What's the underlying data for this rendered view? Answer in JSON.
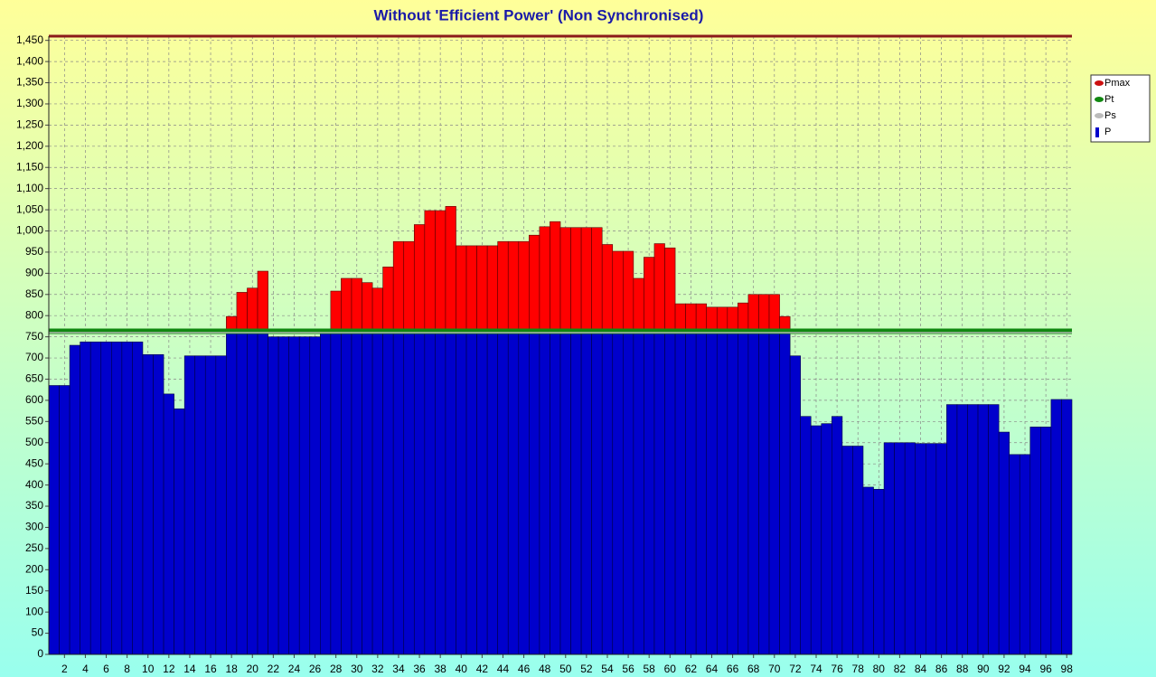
{
  "chart_data": {
    "type": "bar",
    "title": "Without 'Efficient Power' (Non Synchronised)",
    "x": [
      1,
      2,
      3,
      4,
      5,
      6,
      7,
      8,
      9,
      10,
      11,
      12,
      13,
      14,
      15,
      16,
      17,
      18,
      19,
      20,
      21,
      22,
      23,
      24,
      25,
      26,
      27,
      28,
      29,
      30,
      31,
      32,
      33,
      34,
      35,
      36,
      37,
      38,
      39,
      40,
      41,
      42,
      43,
      44,
      45,
      46,
      47,
      48,
      49,
      50,
      51,
      52,
      53,
      54,
      55,
      56,
      57,
      58,
      59,
      60,
      61,
      62,
      63,
      64,
      65,
      66,
      67,
      68,
      69,
      70,
      71,
      72,
      73,
      74,
      75,
      76,
      77,
      78,
      79,
      80,
      81,
      82,
      83,
      84,
      85,
      86,
      87,
      88,
      89,
      90,
      91,
      92,
      93,
      94,
      95,
      96,
      97,
      98
    ],
    "xlim": [
      0.5,
      98.5
    ],
    "xticks": [
      2,
      4,
      6,
      8,
      10,
      12,
      14,
      16,
      18,
      20,
      22,
      24,
      26,
      28,
      30,
      32,
      34,
      36,
      38,
      40,
      42,
      44,
      46,
      48,
      50,
      52,
      54,
      56,
      58,
      60,
      62,
      64,
      66,
      68,
      70,
      72,
      74,
      76,
      78,
      80,
      82,
      84,
      86,
      88,
      90,
      92,
      94,
      96,
      98
    ],
    "ylim": [
      0,
      1460
    ],
    "yticks": [
      0,
      50,
      100,
      150,
      200,
      250,
      300,
      350,
      400,
      450,
      500,
      550,
      600,
      650,
      700,
      750,
      800,
      850,
      900,
      950,
      {
        "value": 1000,
        "label": "1,000"
      },
      {
        "value": 1050,
        "label": "1,050"
      },
      {
        "value": 1100,
        "label": "1,100"
      },
      {
        "value": 1150,
        "label": "1,150"
      },
      {
        "value": 1200,
        "label": "1,200"
      },
      {
        "value": 1250,
        "label": "1,250"
      },
      {
        "value": 1300,
        "label": "1,300"
      },
      {
        "value": 1350,
        "label": "1,350"
      },
      {
        "value": 1400,
        "label": "1,400"
      },
      {
        "value": 1450,
        "label": "1,450"
      }
    ],
    "grid": true,
    "legend": "right",
    "series": [
      {
        "name": "Pmax",
        "color": "#cc1010",
        "line_color": "#8b1a1a",
        "value": 1460
      },
      {
        "name": "Pt",
        "color": "#118811",
        "value": 763
      },
      {
        "name": "Ps",
        "color": "#bbbbbb",
        "value": 760
      },
      {
        "name": "P",
        "color": "#0000cc",
        "over_color": "#ff0000",
        "values": [
          635,
          635,
          730,
          738,
          738,
          738,
          738,
          738,
          738,
          708,
          708,
          615,
          580,
          705,
          705,
          705,
          705,
          798,
          855,
          865,
          905,
          750,
          750,
          750,
          750,
          750,
          760,
          858,
          888,
          888,
          878,
          865,
          915,
          975,
          975,
          1015,
          1048,
          1048,
          1058,
          965,
          965,
          965,
          965,
          975,
          975,
          975,
          990,
          1010,
          1022,
          1008,
          1008,
          1008,
          1008,
          968,
          952,
          952,
          888,
          938,
          970,
          960,
          828,
          828,
          828,
          820,
          820,
          820,
          830,
          850,
          850,
          850,
          798,
          705,
          562,
          540,
          545,
          562,
          492,
          492,
          395,
          390,
          500,
          500,
          500,
          498,
          498,
          498,
          590,
          590,
          590,
          590,
          590,
          525,
          472,
          472,
          537,
          537,
          602,
          602
        ]
      }
    ]
  }
}
